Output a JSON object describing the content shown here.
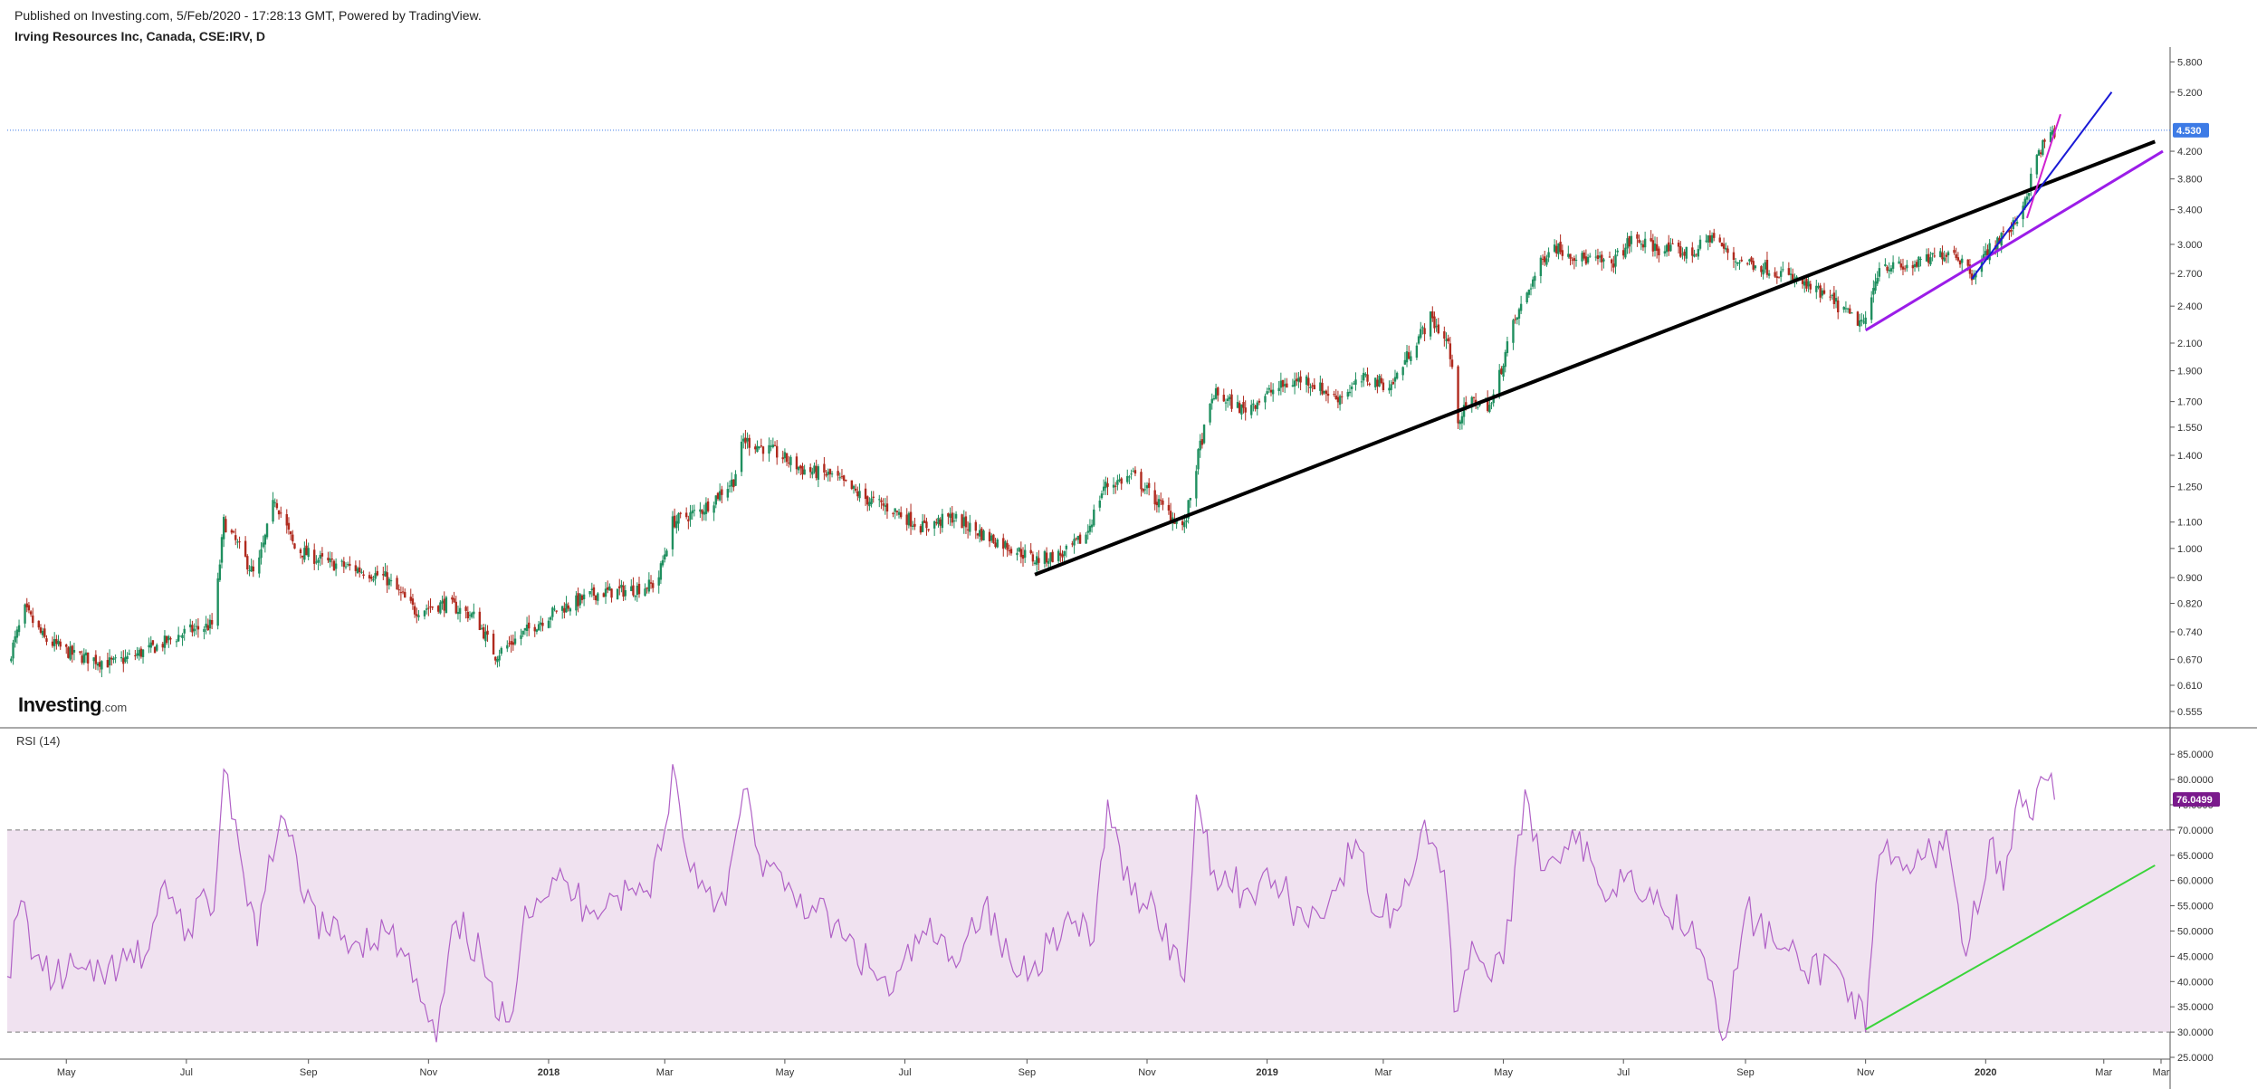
{
  "header": {
    "published": "Published on Investing.com, 5/Feb/2020 - 17:28:13 GMT, Powered by TradingView.",
    "symbol": "Irving Resources Inc, Canada, CSE:IRV, D"
  },
  "logo": {
    "main": "Investing",
    "tld": ".com"
  },
  "chart_data": [
    {
      "type": "candlestick",
      "title": "Irving Resources Inc, Canada, CSE:IRV, D",
      "scale": "log",
      "ylim": [
        0.53,
        6.0
      ],
      "y_ticks": [
        "5.800",
        "5.200",
        "4.200",
        "3.800",
        "3.400",
        "3.000",
        "2.700",
        "2.400",
        "2.100",
        "1.900",
        "1.700",
        "1.550",
        "1.400",
        "1.250",
        "1.100",
        "1.000",
        "0.900",
        "0.820",
        "0.740",
        "0.670",
        "0.610",
        "0.555"
      ],
      "last_price_label": "4.530",
      "last_price": 4.53,
      "colors": {
        "up": "#1f8f5f",
        "down": "#b02a1e",
        "last_price": "#3d7be6"
      },
      "x_ticks": [
        "May",
        "Jul",
        "Sep",
        "Nov",
        "2018",
        "Mar",
        "May",
        "Jul",
        "Sep",
        "Nov",
        "2019",
        "Mar",
        "May",
        "Jul",
        "Sep",
        "Nov",
        "2020",
        "Mar",
        "Mar"
      ],
      "x_range": [
        "2017-04-01",
        "2020-03-31"
      ],
      "price_path": [
        [
          "2017-04-01",
          0.66
        ],
        [
          "2017-04-10",
          0.8
        ],
        [
          "2017-04-20",
          0.72
        ],
        [
          "2017-05-05",
          0.68
        ],
        [
          "2017-05-25",
          0.66
        ],
        [
          "2017-06-15",
          0.7
        ],
        [
          "2017-07-01",
          0.74
        ],
        [
          "2017-07-15",
          0.76
        ],
        [
          "2017-07-20",
          1.1
        ],
        [
          "2017-07-28",
          1.0
        ],
        [
          "2017-08-05",
          0.9
        ],
        [
          "2017-08-15",
          1.2
        ],
        [
          "2017-08-25",
          1.0
        ],
        [
          "2017-09-10",
          0.95
        ],
        [
          "2017-09-25",
          0.93
        ],
        [
          "2017-10-10",
          0.9
        ],
        [
          "2017-10-25",
          0.8
        ],
        [
          "2017-11-10",
          0.82
        ],
        [
          "2017-11-25",
          0.78
        ],
        [
          "2017-12-05",
          0.68
        ],
        [
          "2017-12-20",
          0.74
        ],
        [
          "2018-01-05",
          0.8
        ],
        [
          "2018-01-25",
          0.85
        ],
        [
          "2018-02-10",
          0.86
        ],
        [
          "2018-02-25",
          0.88
        ],
        [
          "2018-03-05",
          1.1
        ],
        [
          "2018-03-20",
          1.15
        ],
        [
          "2018-04-05",
          1.28
        ],
        [
          "2018-04-10",
          1.48
        ],
        [
          "2018-04-25",
          1.42
        ],
        [
          "2018-05-10",
          1.33
        ],
        [
          "2018-05-25",
          1.3
        ],
        [
          "2018-06-10",
          1.2
        ],
        [
          "2018-06-25",
          1.15
        ],
        [
          "2018-07-10",
          1.08
        ],
        [
          "2018-07-25",
          1.12
        ],
        [
          "2018-08-10",
          1.05
        ],
        [
          "2018-08-25",
          1.0
        ],
        [
          "2018-09-05",
          0.96
        ],
        [
          "2018-09-20",
          0.98
        ],
        [
          "2018-10-01",
          1.05
        ],
        [
          "2018-10-10",
          1.25
        ],
        [
          "2018-10-25",
          1.3
        ],
        [
          "2018-11-10",
          1.15
        ],
        [
          "2018-11-20",
          1.08
        ],
        [
          "2018-11-28",
          1.45
        ],
        [
          "2018-12-05",
          1.75
        ],
        [
          "2018-12-20",
          1.65
        ],
        [
          "2019-01-05",
          1.78
        ],
        [
          "2019-01-20",
          1.85
        ],
        [
          "2019-02-05",
          1.72
        ],
        [
          "2019-02-20",
          1.85
        ],
        [
          "2019-03-05",
          1.8
        ],
        [
          "2019-03-15",
          2.05
        ],
        [
          "2019-03-25",
          2.3
        ],
        [
          "2019-04-03",
          2.1
        ],
        [
          "2019-04-08",
          1.6
        ],
        [
          "2019-04-15",
          1.7
        ],
        [
          "2019-04-25",
          1.68
        ],
        [
          "2019-05-05",
          2.2
        ],
        [
          "2019-05-15",
          2.6
        ],
        [
          "2019-05-25",
          3.0
        ],
        [
          "2019-06-10",
          2.85
        ],
        [
          "2019-06-25",
          2.8
        ],
        [
          "2019-07-05",
          3.05
        ],
        [
          "2019-07-20",
          2.95
        ],
        [
          "2019-08-05",
          2.9
        ],
        [
          "2019-08-15",
          3.1
        ],
        [
          "2019-08-25",
          2.85
        ],
        [
          "2019-09-05",
          2.8
        ],
        [
          "2019-09-20",
          2.7
        ],
        [
          "2019-10-05",
          2.55
        ],
        [
          "2019-10-15",
          2.45
        ],
        [
          "2019-10-25",
          2.3
        ],
        [
          "2019-11-01",
          2.25
        ],
        [
          "2019-11-08",
          2.8
        ],
        [
          "2019-11-20",
          2.75
        ],
        [
          "2019-12-05",
          2.85
        ],
        [
          "2019-12-15",
          2.95
        ],
        [
          "2019-12-25",
          2.7
        ],
        [
          "2020-01-05",
          3.0
        ],
        [
          "2020-01-15",
          3.2
        ],
        [
          "2020-01-22",
          3.6
        ],
        [
          "2020-01-28",
          4.2
        ],
        [
          "2020-02-05",
          4.53
        ]
      ],
      "trendlines": [
        {
          "color": "#000000",
          "from": [
            "2018-09-05",
            0.91
          ],
          "to": [
            "2020-03-27",
            4.35
          ]
        },
        {
          "color": "#9b1de8",
          "from": [
            "2019-11-01",
            2.2
          ],
          "to": [
            "2020-03-31",
            4.2
          ]
        },
        {
          "color": "#1a1ad6",
          "from": [
            "2019-12-25",
            2.65
          ],
          "to": [
            "2020-03-05",
            5.2
          ]
        },
        {
          "color": "#d020d0",
          "from": [
            "2020-01-22",
            3.3
          ],
          "to": [
            "2020-02-08",
            4.8
          ]
        }
      ]
    },
    {
      "type": "line",
      "title": "RSI (14)",
      "ylim": [
        25,
        87
      ],
      "y_ticks": [
        "85.0000",
        "80.0000",
        "75.0000",
        "70.0000",
        "65.0000",
        "60.0000",
        "55.0000",
        "50.0000",
        "45.0000",
        "40.0000",
        "35.0000",
        "30.0000",
        "25.0000"
      ],
      "band": [
        30,
        70
      ],
      "last_value_label": "76.0499",
      "last_value": 76.05,
      "colors": {
        "line": "#b061c6",
        "band": "#f0e2f0",
        "last_value": "#7a1a8c"
      },
      "series": [
        {
          "points": [
            [
              "2017-04-01",
              41
            ],
            [
              "2017-04-08",
              56
            ],
            [
              "2017-04-15",
              45
            ],
            [
              "2017-04-25",
              40
            ],
            [
              "2017-05-05",
              43
            ],
            [
              "2017-05-15",
              40
            ],
            [
              "2017-05-28",
              43
            ],
            [
              "2017-06-10",
              45
            ],
            [
              "2017-06-20",
              60
            ],
            [
              "2017-06-30",
              48
            ],
            [
              "2017-07-08",
              57
            ],
            [
              "2017-07-15",
              54
            ],
            [
              "2017-07-20",
              82
            ],
            [
              "2017-07-26",
              72
            ],
            [
              "2017-08-01",
              55
            ],
            [
              "2017-08-06",
              47
            ],
            [
              "2017-08-12",
              65
            ],
            [
              "2017-08-20",
              72
            ],
            [
              "2017-08-28",
              58
            ],
            [
              "2017-09-10",
              50
            ],
            [
              "2017-09-25",
              48
            ],
            [
              "2017-10-10",
              50
            ],
            [
              "2017-10-20",
              45
            ],
            [
              "2017-11-01",
              32
            ],
            [
              "2017-11-05",
              28
            ],
            [
              "2017-11-15",
              52
            ],
            [
              "2017-11-28",
              45
            ],
            [
              "2017-12-05",
              33
            ],
            [
              "2017-12-12",
              32
            ],
            [
              "2017-12-20",
              55
            ],
            [
              "2018-01-05",
              60
            ],
            [
              "2018-01-20",
              55
            ],
            [
              "2018-02-05",
              57
            ],
            [
              "2018-02-20",
              58
            ],
            [
              "2018-03-01",
              70
            ],
            [
              "2018-03-05",
              83
            ],
            [
              "2018-03-12",
              65
            ],
            [
              "2018-03-20",
              60
            ],
            [
              "2018-04-01",
              55
            ],
            [
              "2018-04-10",
              78
            ],
            [
              "2018-04-18",
              65
            ],
            [
              "2018-05-01",
              58
            ],
            [
              "2018-05-15",
              55
            ],
            [
              "2018-06-01",
              48
            ],
            [
              "2018-06-15",
              42
            ],
            [
              "2018-06-25",
              38
            ],
            [
              "2018-07-10",
              50
            ],
            [
              "2018-07-25",
              45
            ],
            [
              "2018-08-10",
              55
            ],
            [
              "2018-08-25",
              42
            ],
            [
              "2018-09-05",
              44
            ],
            [
              "2018-09-20",
              52
            ],
            [
              "2018-10-05",
              48
            ],
            [
              "2018-10-12",
              76
            ],
            [
              "2018-10-20",
              60
            ],
            [
              "2018-11-05",
              55
            ],
            [
              "2018-11-20",
              40
            ],
            [
              "2018-11-26",
              77
            ],
            [
              "2018-12-05",
              62
            ],
            [
              "2018-12-20",
              58
            ],
            [
              "2019-01-05",
              60
            ],
            [
              "2019-01-20",
              52
            ],
            [
              "2019-02-05",
              58
            ],
            [
              "2019-02-15",
              68
            ],
            [
              "2019-02-25",
              53
            ],
            [
              "2019-03-10",
              55
            ],
            [
              "2019-03-22",
              72
            ],
            [
              "2019-04-01",
              62
            ],
            [
              "2019-04-06",
              34
            ],
            [
              "2019-04-15",
              48
            ],
            [
              "2019-04-25",
              40
            ],
            [
              "2019-05-05",
              52
            ],
            [
              "2019-05-12",
              78
            ],
            [
              "2019-05-22",
              62
            ],
            [
              "2019-06-05",
              70
            ],
            [
              "2019-06-20",
              58
            ],
            [
              "2019-07-05",
              62
            ],
            [
              "2019-07-20",
              55
            ],
            [
              "2019-08-05",
              52
            ],
            [
              "2019-08-15",
              40
            ],
            [
              "2019-08-22",
              29
            ],
            [
              "2019-09-01",
              54
            ],
            [
              "2019-09-15",
              48
            ],
            [
              "2019-10-01",
              42
            ],
            [
              "2019-10-15",
              44
            ],
            [
              "2019-10-25",
              38
            ],
            [
              "2019-11-01",
              30
            ],
            [
              "2019-11-08",
              65
            ],
            [
              "2019-11-20",
              62
            ],
            [
              "2019-12-05",
              65
            ],
            [
              "2019-12-12",
              70
            ],
            [
              "2019-12-22",
              45
            ],
            [
              "2020-01-03",
              68
            ],
            [
              "2020-01-10",
              58
            ],
            [
              "2020-01-18",
              78
            ],
            [
              "2020-01-25",
              72
            ],
            [
              "2020-01-31",
              80
            ],
            [
              "2020-02-05",
              76
            ]
          ]
        }
      ],
      "trendline": {
        "color": "#3ad43a",
        "from": [
          "2019-11-01",
          30.5
        ],
        "to": [
          "2020-03-27",
          63
        ]
      }
    }
  ]
}
